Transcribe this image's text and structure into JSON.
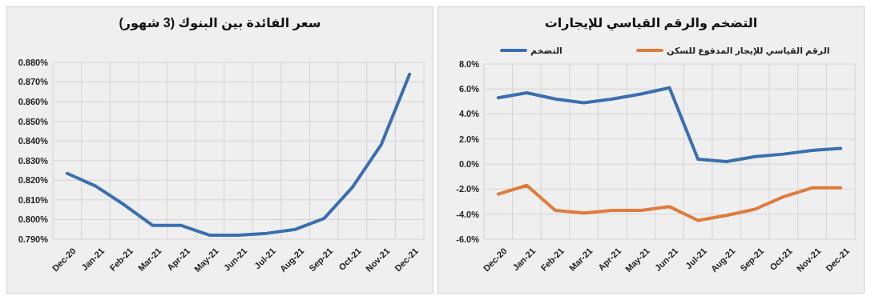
{
  "chart_data": [
    {
      "type": "line",
      "title": "سعر الفائدة بين البنوك (3 شهور)",
      "categories": [
        "Dec-20",
        "Jan-21",
        "Feb-21",
        "Mar-21",
        "Apr-21",
        "May-21",
        "Jun-21",
        "Jul-21",
        "Aug-21",
        "Sep-21",
        "Oct-21",
        "Nov-21",
        "Dec-21"
      ],
      "series": [
        {
          "color": "#3a6fb0",
          "values": [
            0.8235,
            0.817,
            0.8075,
            0.797,
            0.797,
            0.792,
            0.792,
            0.793,
            0.795,
            0.8005,
            0.8165,
            0.838,
            0.874
          ]
        }
      ],
      "ylim": [
        0.79,
        0.88
      ],
      "yticks": [
        {
          "value": 0.79,
          "label": "0.790%"
        },
        {
          "value": 0.8,
          "label": "0.800%"
        },
        {
          "value": 0.81,
          "label": "0.810%"
        },
        {
          "value": 0.82,
          "label": "0.820%"
        },
        {
          "value": 0.83,
          "label": "0.830%"
        },
        {
          "value": 0.84,
          "label": "0.840%"
        },
        {
          "value": 0.85,
          "label": "0.850%"
        },
        {
          "value": 0.86,
          "label": "0.860%"
        },
        {
          "value": 0.87,
          "label": "0.870%"
        },
        {
          "value": 0.88,
          "label": "0.880%"
        }
      ],
      "grid": true,
      "marker": "none",
      "line_style": "solid"
    },
    {
      "type": "line",
      "title": "التضخم والرقم القياسي للإيجارات",
      "categories": [
        "Dec-20",
        "Jan-21",
        "Feb-21",
        "Mar-21",
        "Apr-21",
        "May-21",
        "Jun-21",
        "Jul-21",
        "Aug-21",
        "Sep-21",
        "Oct-21",
        "Nov-21",
        "Dec-21"
      ],
      "series": [
        {
          "name": "التضخم",
          "color": "#3a6fb0",
          "values": [
            5.3,
            5.7,
            5.2,
            4.9,
            5.2,
            5.6,
            6.1,
            0.4,
            0.2,
            0.6,
            0.8,
            1.1,
            1.25
          ]
        },
        {
          "name": "الرقم القياسي للإيجار المدفوع للسكن",
          "color": "#e07b3c",
          "values": [
            -2.4,
            -1.7,
            -3.7,
            -3.9,
            -3.7,
            -3.7,
            -3.4,
            -4.5,
            -4.1,
            -3.6,
            -2.6,
            -1.9,
            -1.9
          ]
        }
      ],
      "ylim": [
        -6,
        8
      ],
      "yticks": [
        {
          "value": -6,
          "label": "-6.0%"
        },
        {
          "value": -4,
          "label": "-4.0%"
        },
        {
          "value": -2,
          "label": "-2.0%"
        },
        {
          "value": 0,
          "label": "0.0%"
        },
        {
          "value": 2,
          "label": "2.0%"
        },
        {
          "value": 4,
          "label": "4.0%"
        },
        {
          "value": 6,
          "label": "6.0%"
        },
        {
          "value": 8,
          "label": "8.0%"
        }
      ],
      "grid": true,
      "legend": "top",
      "marker": "none",
      "line_style": "solid"
    }
  ]
}
